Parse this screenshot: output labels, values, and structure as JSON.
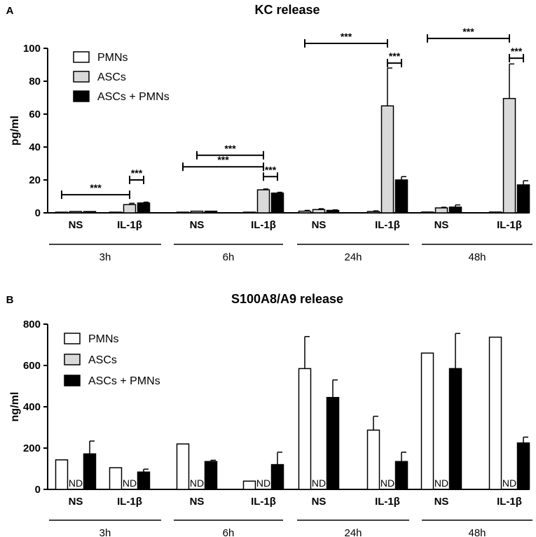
{
  "chart_data": [
    {
      "panel": "A",
      "type": "bar",
      "title": "KC release",
      "ylabel": "pg/ml",
      "xlabel": "",
      "ylim": [
        0,
        100
      ],
      "yticks": [
        0,
        20,
        40,
        60,
        80,
        100
      ],
      "timepoints": [
        "3h",
        "6h",
        "24h",
        "48h"
      ],
      "conditions": [
        "NS",
        "IL-1β"
      ],
      "legend": [
        "PMNs",
        "ASCs",
        "ASCs + PMNs"
      ],
      "legend_position": "top-left",
      "series": [
        {
          "name": "PMNs",
          "color": "#ffffff",
          "values": [
            0.3,
            0.3,
            0.3,
            0.3,
            1.0,
            0.8,
            0.5,
            0.5
          ],
          "errors": [
            0,
            0,
            0,
            0,
            0.5,
            0.4,
            0,
            0
          ]
        },
        {
          "name": "ASCs",
          "color": "#d9d9d9",
          "values": [
            0.8,
            5.0,
            1.0,
            14.0,
            2.0,
            65.0,
            3.0,
            69.5
          ],
          "errors": [
            0,
            0.8,
            0,
            0.5,
            0.5,
            23.0,
            0.4,
            21.0
          ]
        },
        {
          "name": "ASCs + PMNs",
          "color": "#000000",
          "values": [
            0.8,
            6.0,
            1.0,
            12.0,
            1.5,
            20.0,
            3.5,
            17.0
          ],
          "errors": [
            0,
            0.5,
            0,
            0.5,
            0.3,
            2.0,
            1.3,
            2.5
          ]
        }
      ],
      "significance": [
        {
          "label": "***",
          "from": [
            0,
            0
          ],
          "to": [
            1,
            1
          ],
          "level": 11
        },
        {
          "label": "***",
          "from": [
            1,
            1
          ],
          "to": [
            1,
            2
          ],
          "level": 20
        },
        {
          "label": "***",
          "from": [
            2,
            0
          ],
          "to": [
            3,
            1
          ],
          "level": 28
        },
        {
          "label": "***",
          "from": [
            2,
            1
          ],
          "to": [
            3,
            1
          ],
          "level": 35
        },
        {
          "label": "***",
          "from": [
            3,
            1
          ],
          "to": [
            3,
            2
          ],
          "level": 22
        },
        {
          "label": "***",
          "from": [
            4,
            0
          ],
          "to": [
            5,
            1
          ],
          "level": 103
        },
        {
          "label": "***",
          "from": [
            5,
            1
          ],
          "to": [
            5,
            2
          ],
          "level": 91
        },
        {
          "label": "***",
          "from": [
            6,
            0
          ],
          "to": [
            7,
            1
          ],
          "level": 106
        },
        {
          "label": "***",
          "from": [
            7,
            1
          ],
          "to": [
            7,
            2
          ],
          "level": 94
        }
      ]
    },
    {
      "panel": "B",
      "type": "bar",
      "title": "S100A8/A9 release",
      "ylabel": "ng/ml",
      "xlabel": "",
      "ylim": [
        0,
        800
      ],
      "yticks": [
        0,
        200,
        400,
        600,
        800
      ],
      "timepoints": [
        "3h",
        "6h",
        "24h",
        "48h"
      ],
      "conditions": [
        "NS",
        "IL-1β"
      ],
      "legend": [
        "PMNs",
        "ASCs",
        "ASCs + PMNs"
      ],
      "legend_position": "top-left",
      "na_label": "ND",
      "series": [
        {
          "name": "PMNs",
          "color": "#ffffff",
          "values": [
            143,
            105,
            220,
            40,
            585,
            287,
            660,
            737
          ],
          "errors": [
            0,
            0,
            0,
            0,
            155,
            67,
            0,
            0
          ]
        },
        {
          "name": "ASCs",
          "color": "#d9d9d9",
          "values": [
            null,
            null,
            null,
            null,
            null,
            null,
            null,
            null
          ],
          "errors": [
            0,
            0,
            0,
            0,
            0,
            0,
            0,
            0
          ]
        },
        {
          "name": "ASCs + PMNs",
          "color": "#000000",
          "values": [
            172,
            84,
            135,
            120,
            445,
            135,
            585,
            225
          ],
          "errors": [
            62,
            14,
            6,
            60,
            85,
            45,
            170,
            28
          ]
        }
      ]
    }
  ]
}
